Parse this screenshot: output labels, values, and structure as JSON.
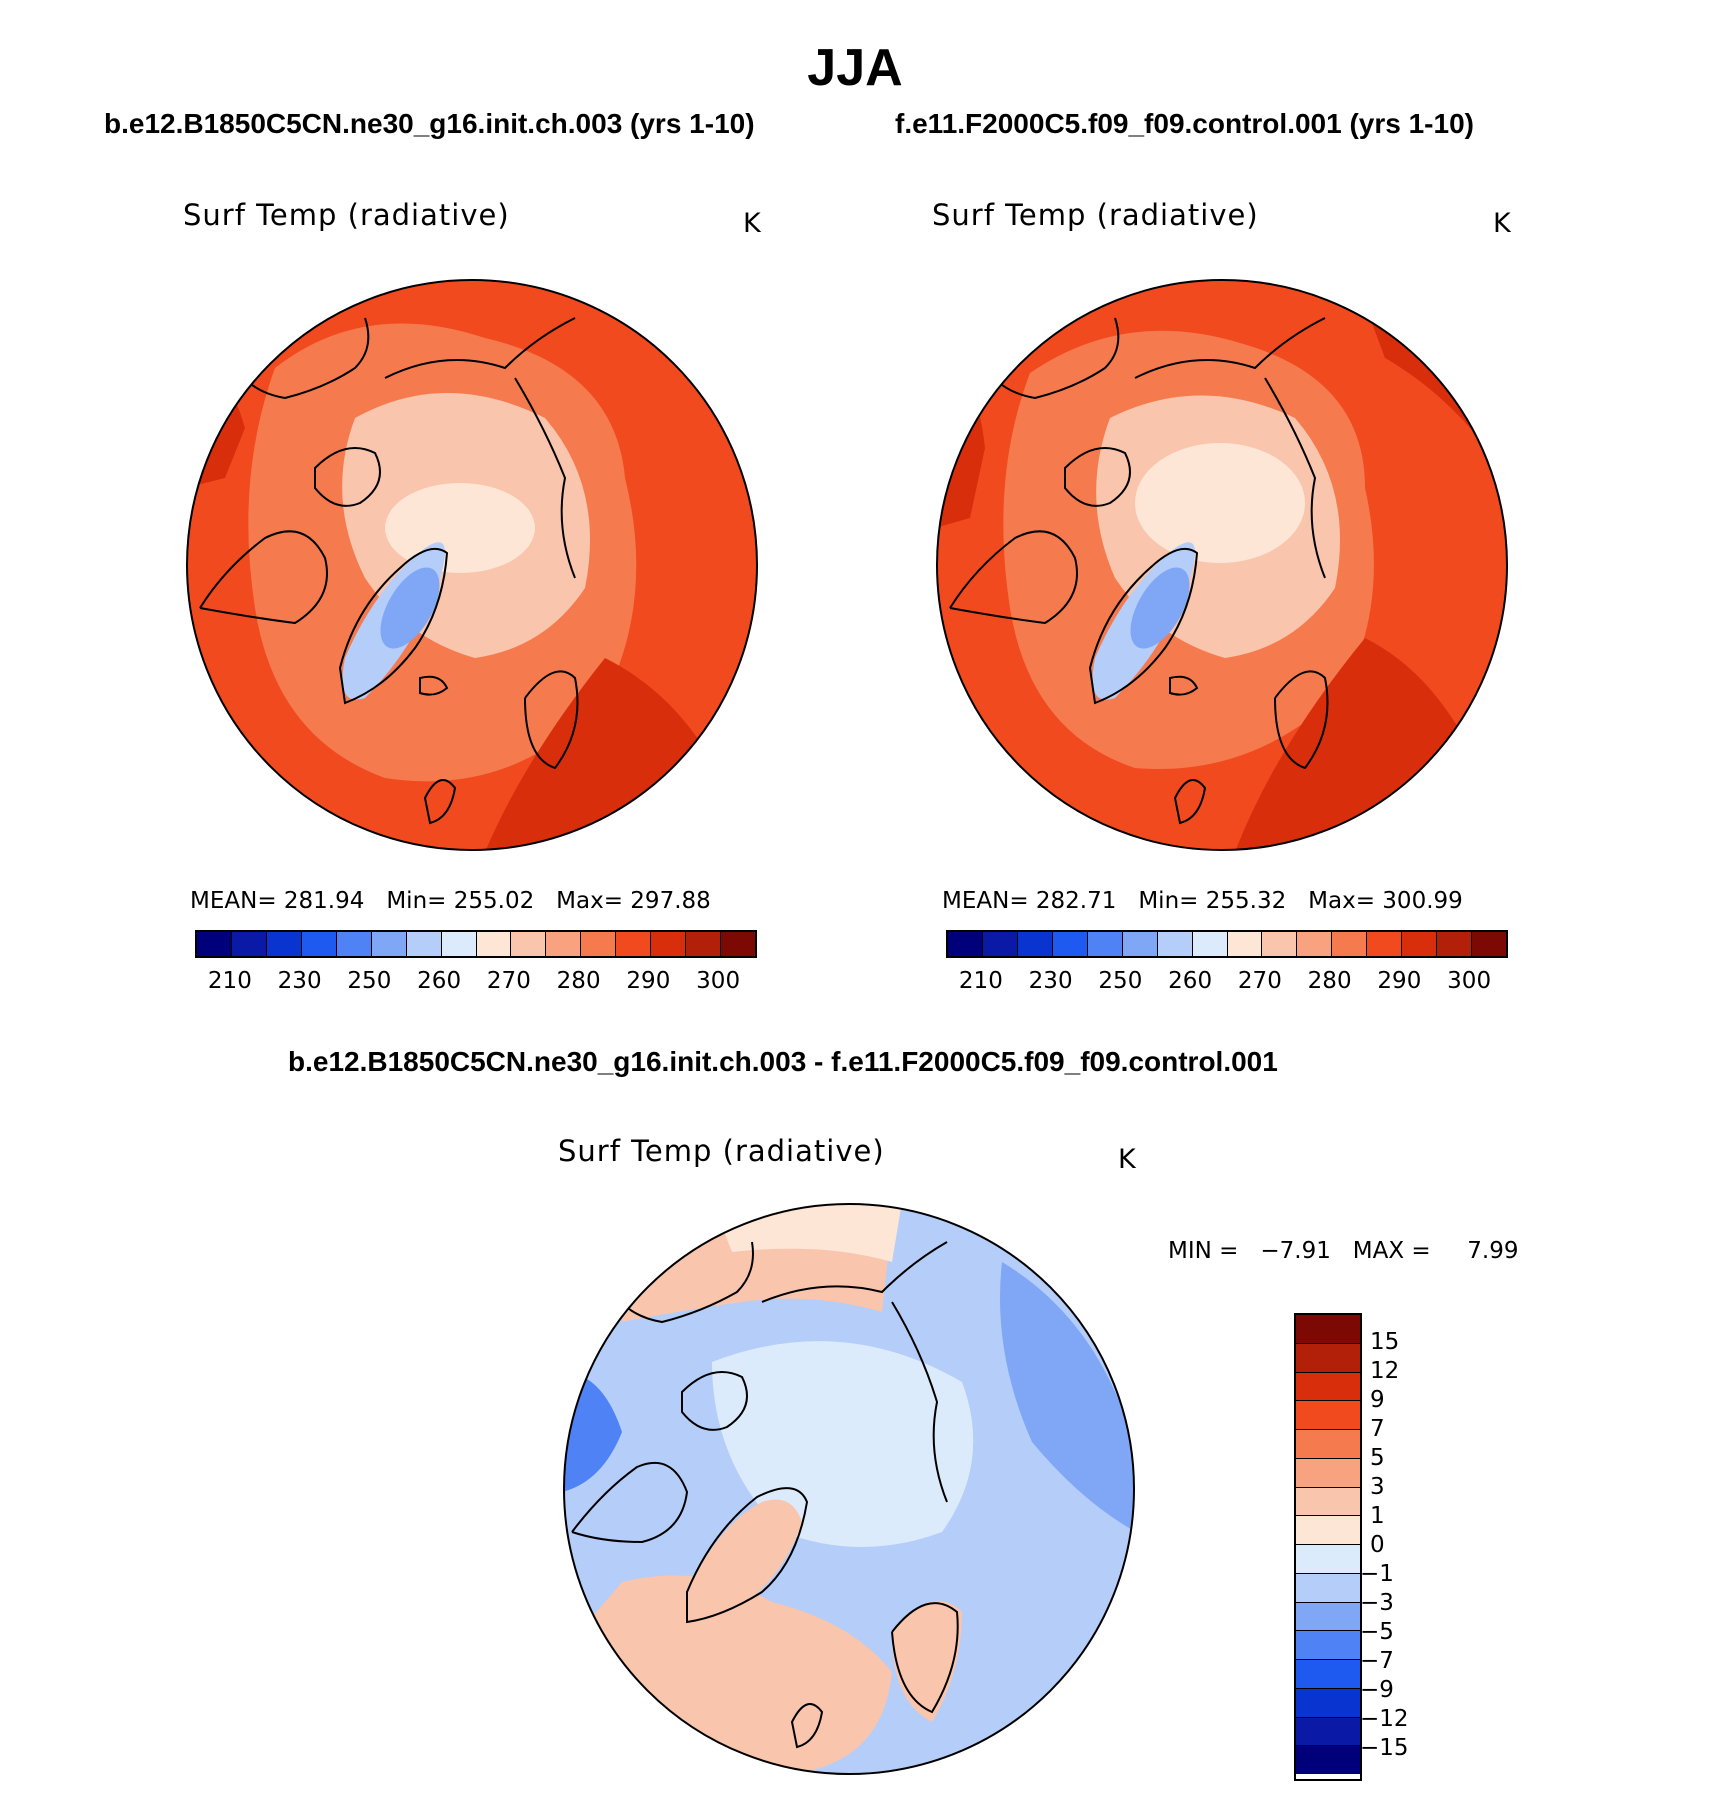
{
  "season": "JJA",
  "panels": {
    "case1": {
      "header": "b.e12.B1850C5CN.ne30_g16.init.ch.003 (yrs 1-10)",
      "title": "Surf Temp (radiative)",
      "units": "K",
      "mean_label": "MEAN=",
      "mean": "281.94",
      "min_label": "Min=",
      "min": "255.02",
      "max_label": "Max=",
      "max": "297.88"
    },
    "case2": {
      "header": "f.e11.F2000C5.f09_f09.control.001 (yrs 1-10)",
      "title": "Surf Temp (radiative)",
      "units": "K",
      "mean_label": "MEAN=",
      "mean": "282.71",
      "min_label": "Min=",
      "min": "255.32",
      "max_label": "Max=",
      "max": "300.99"
    },
    "diff": {
      "header": "b.e12.B1850C5CN.ne30_g16.init.ch.003 - f.e11.F2000C5.f09_f09.control.001",
      "title": "Surf Temp (radiative)",
      "units": "K",
      "min_label": "MIN =",
      "min": "−7.91",
      "max_label": "MAX =",
      "max": "7.99"
    }
  },
  "colorbars": {
    "abs": {
      "ticks": [
        "210",
        "230",
        "250",
        "260",
        "270",
        "280",
        "290",
        "300"
      ],
      "colors": [
        "#00007a",
        "#0b1aa6",
        "#0a34d0",
        "#1f5af0",
        "#4e82f5",
        "#80a6f6",
        "#b4cdf9",
        "#dcebfb",
        "#fde6d6",
        "#fac5ad",
        "#f8a27f",
        "#f57b4f",
        "#f24a1f",
        "#d92e0c",
        "#b3200a",
        "#7d0904"
      ]
    },
    "diff": {
      "ticks": [
        "15",
        "12",
        "9",
        "7",
        "5",
        "3",
        "1",
        "0",
        "−1",
        "−3",
        "−5",
        "−7",
        "−9",
        "−12",
        "−15"
      ],
      "colors": [
        "#7d0904",
        "#b3200a",
        "#d92e0c",
        "#f24a1f",
        "#f57b4f",
        "#f8a27f",
        "#fac5ad",
        "#fde6d6",
        "#dcebfb",
        "#b4cdf9",
        "#80a6f6",
        "#4e82f5",
        "#1f5af0",
        "#0a34d0",
        "#0b1aa6",
        "#00007a"
      ]
    }
  },
  "map_colors": {
    "ocean_warm": "#f24a1f",
    "ocean_mid": "#f57b4f",
    "arctic": "#fac5ad",
    "pole": "#fde6d6",
    "hot": "#d92e0c",
    "greenland_low": "#b4cdf9",
    "greenland_core": "#80a6f6",
    "diff_base": "#b4cdf9",
    "diff_light": "#dcebfb",
    "diff_pos": "#fac5ad",
    "diff_pos_light": "#fde6d6",
    "diff_neg": "#80a6f6",
    "diff_neg_strong": "#4e82f5"
  }
}
